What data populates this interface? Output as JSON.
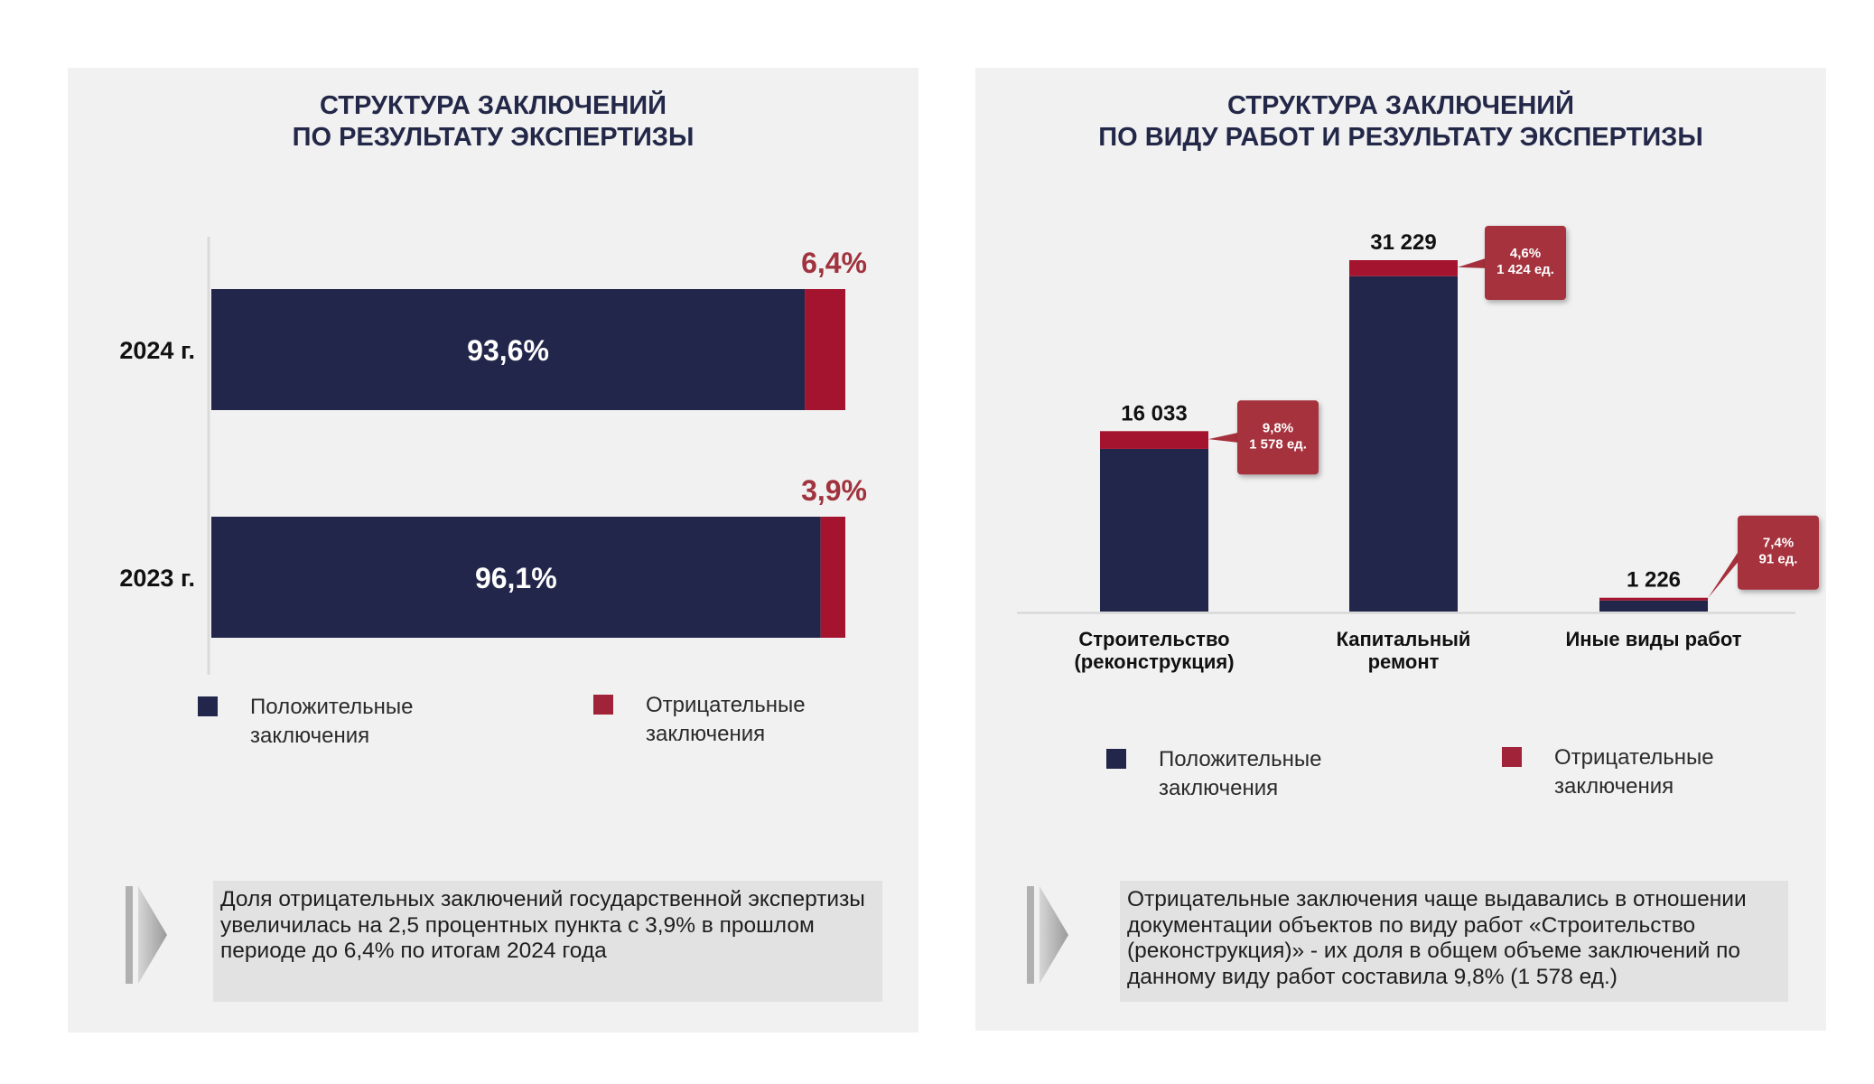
{
  "colors": {
    "positive": "#22264a",
    "negative_bar": "#a5142e",
    "negative_legend": "#a0233a",
    "negative_text": "#a0333e",
    "callout": "#a5303c",
    "title": "#232848"
  },
  "left": {
    "title_lines": [
      "СТРУКТУРА ЗАКЛЮЧЕНИЙ",
      "ПО РЕЗУЛЬТАТУ ЭКСПЕРТИЗЫ"
    ],
    "legend": {
      "positive": "Положительные заключения",
      "negative": "Отрицательные заключения"
    },
    "note": "Доля отрицательных заключений государственной экспертизы увеличилась на 2,5 процентных пункта с 3,9% в прошлом периоде до 6,4% по итогам 2024 года",
    "arrow_icon": "chevron-right-icon"
  },
  "right": {
    "title_lines": [
      "СТРУКТУРА ЗАКЛЮЧЕНИЙ",
      "ПО ВИДУ РАБОТ И РЕЗУЛЬТАТУ ЭКСПЕРТИЗЫ"
    ],
    "legend": {
      "positive": "Положительные заключения",
      "negative": "Отрицательные заключения"
    },
    "note": "Отрицательные заключения чаще выдавались в отношении документации объектов по виду работ «Строительство (реконструкция)» - их доля в общем объеме заключений по данному виду работ составила 9,8% (1 578 ед.)",
    "arrow_icon": "chevron-right-icon"
  },
  "chart_data": [
    {
      "type": "bar",
      "orientation": "horizontal",
      "stacked": true,
      "categories": [
        "2024 г.",
        "2023 г."
      ],
      "series": [
        {
          "name": "Положительные заключения",
          "values": [
            93.6,
            96.1
          ],
          "labels": [
            "93,6%",
            "96,1%"
          ]
        },
        {
          "name": "Отрицательные заключения",
          "values": [
            6.4,
            3.9
          ],
          "labels": [
            "6,4%",
            "3,9%"
          ]
        }
      ],
      "xlim": [
        0,
        100
      ],
      "legend": "bottom",
      "grid": false
    },
    {
      "type": "bar",
      "orientation": "vertical",
      "stacked": true,
      "categories": [
        "Строительство (реконструкция)",
        "Капитальный ремонт",
        "Иные виды работ"
      ],
      "category_lines": [
        [
          "Строительство",
          "(реконструкция)"
        ],
        [
          "Капитальный",
          "ремонт"
        ],
        [
          "Иные виды работ"
        ]
      ],
      "totals": [
        16033,
        31229,
        1226
      ],
      "total_labels": [
        "16 033",
        "31 229",
        "1 226"
      ],
      "series": [
        {
          "name": "Положительные заключения",
          "values": [
            14455,
            29805,
            1135
          ]
        },
        {
          "name": "Отрицательные заключения",
          "values": [
            1578,
            1424,
            91
          ]
        }
      ],
      "callouts": [
        {
          "pct": "9,8%",
          "count": "1 578 ед."
        },
        {
          "pct": "4,6%",
          "count": "1 424 ед."
        },
        {
          "pct": "7,4%",
          "count": "91 ед."
        }
      ],
      "ylim": [
        0,
        31229
      ],
      "legend": "bottom",
      "grid": false
    }
  ]
}
